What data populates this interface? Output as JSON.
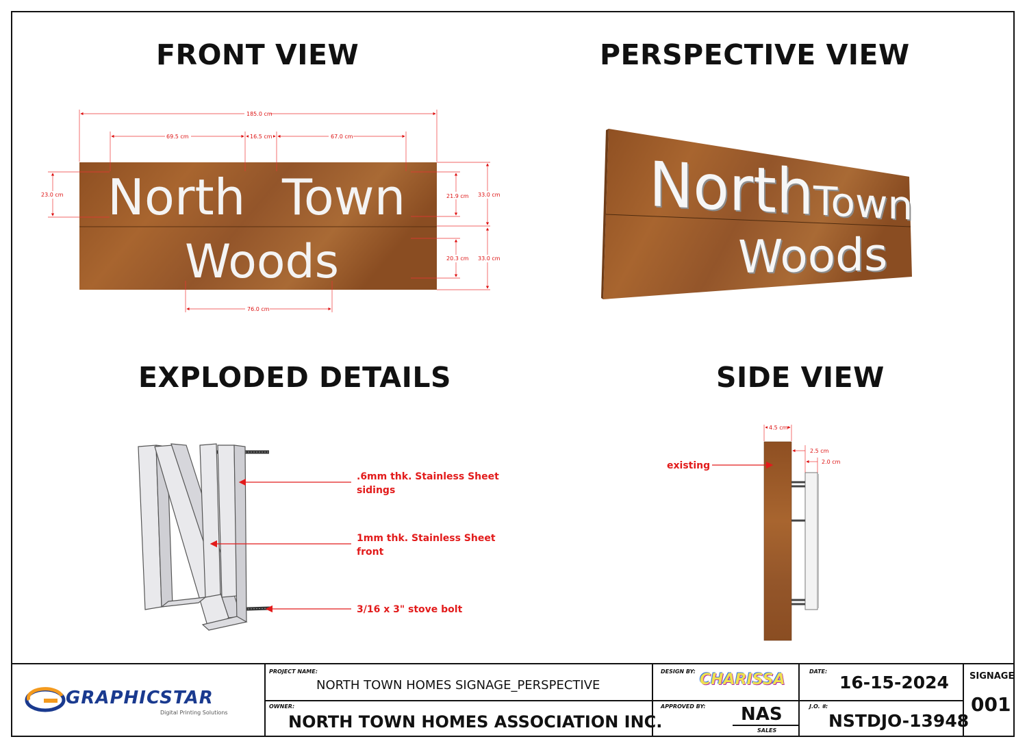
{
  "views": {
    "front_title": "FRONT VIEW",
    "perspective_title": "PERSPECTIVE VIEW",
    "exploded_title": "EXPLODED DETAILS",
    "side_title": "SIDE VIEW"
  },
  "sign": {
    "line1_word1": "North",
    "line1_word2": "Town",
    "line2": "Woods",
    "wood_color": "#9a5a2a",
    "letter_color": "#f4f4f4"
  },
  "front_dims": {
    "overall_width": "185.0 cm",
    "north_width": "69.5 cm",
    "gap_width": "16.5 cm",
    "town_width": "67.0 cm",
    "woods_width": "76.0 cm",
    "top_letter_height": "23.0 cm",
    "top_text_height": "21.9 cm",
    "top_panel_height": "33.0 cm",
    "bottom_text_height": "20.3 cm",
    "bottom_panel_height": "33.0 cm"
  },
  "side_dims": {
    "panel_depth": "4.5 cm",
    "standoff": "2.5 cm",
    "letter_depth": "2.0 cm",
    "existing_label": "existing"
  },
  "exploded_callouts": {
    "sidings_line1": ".6mm thk. Stainless Sheet",
    "sidings_line2": "sidings",
    "front_line1": "1mm thk. Stainless Sheet",
    "front_line2": "front",
    "bolt": "3/16 x 3\" stove bolt"
  },
  "title_block": {
    "logo_name": "GRAPHICSTAR",
    "logo_tagline": "Digital Printing Solutions",
    "project_name_label": "PROJECT NAME:",
    "project_name": "NORTH TOWN HOMES SIGNAGE_PERSPECTIVE",
    "owner_label": "OWNER:",
    "owner": "NORTH TOWN HOMES ASSOCIATION INC.",
    "design_by_label": "DESIGN BY:",
    "design_by": "CHARISSA",
    "approved_by_label": "APPROVED BY:",
    "approved_by": "NAS",
    "approved_sub": "SALES",
    "date_label": "DATE:",
    "date": "16-15-2024",
    "jo_label": "J.O. #:",
    "jo_number": "NSTDJO-13948",
    "signage_label": "SIGNAGE",
    "signage_number": "001",
    "brand_blue": "#1a3a8f",
    "brand_orange": "#f39a1e"
  }
}
